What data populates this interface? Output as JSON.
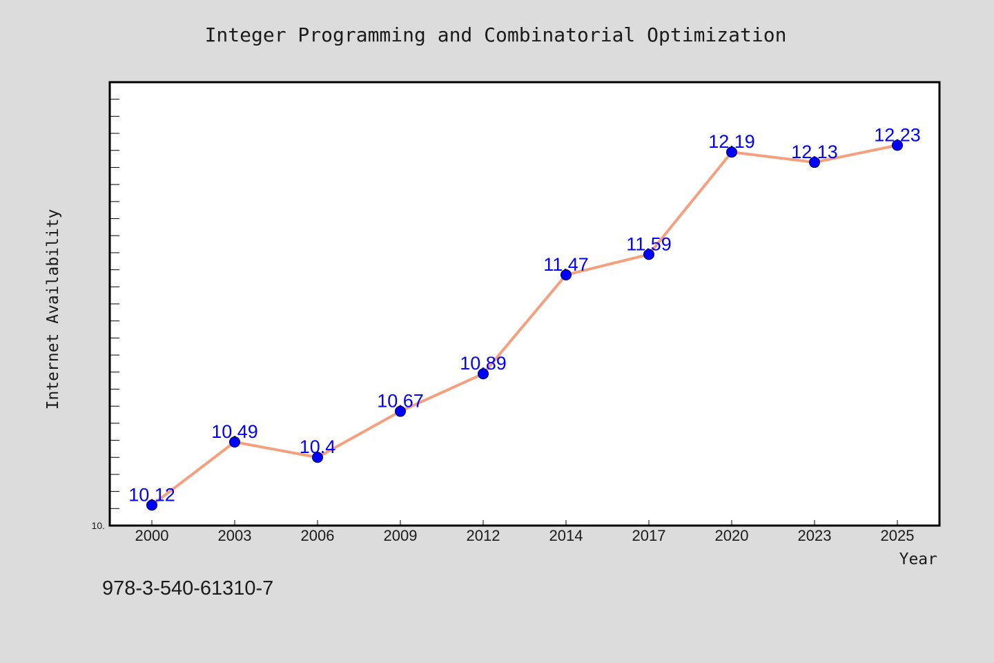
{
  "chart_data": {
    "type": "line",
    "title": "Integer Programming and Combinatorial Optimization",
    "xlabel": "Year",
    "ylabel": "Internet Availability",
    "categories": [
      "2000",
      "2003",
      "2006",
      "2009",
      "2012",
      "2014",
      "2017",
      "2020",
      "2023",
      "2025"
    ],
    "values": [
      10.12,
      10.49,
      10.4,
      10.67,
      10.89,
      11.47,
      11.59,
      12.19,
      12.13,
      12.23
    ],
    "value_labels": [
      "10.12",
      "10.49",
      "10.4",
      "10.67",
      "10.89",
      "11.47",
      "11.59",
      "12.19",
      "12.13",
      "12.23"
    ],
    "ylim": [
      10.0,
      12.6
    ],
    "y_min_label": "10.",
    "grid": false,
    "line_color": "#f4a07f",
    "marker_color": "#0000ff",
    "label_color": "#0000ff"
  },
  "footnote": "978-3-540-61310-7",
  "colors": {
    "background": "#dcdcdc",
    "plot_background": "#ffffff",
    "frame": "#000000"
  }
}
